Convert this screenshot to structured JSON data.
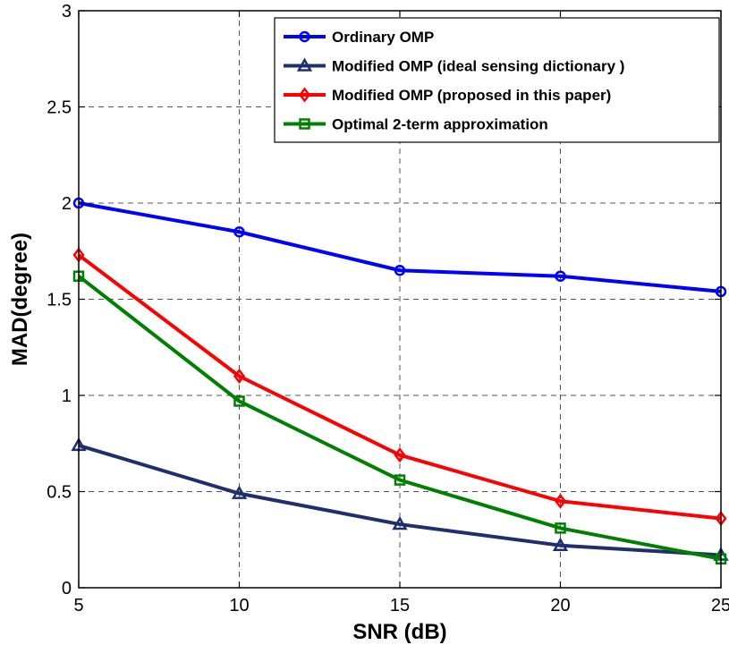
{
  "chart_data": {
    "type": "line",
    "xlabel": "SNR (dB)",
    "ylabel": "MAD(degree)",
    "xlim": [
      5,
      25
    ],
    "ylim": [
      0,
      3
    ],
    "x": [
      5,
      10,
      15,
      20,
      25
    ],
    "xticks": [
      "5",
      "10",
      "15",
      "20",
      "25"
    ],
    "yticks": [
      "0",
      "0.5",
      "1",
      "1.5",
      "2",
      "2.5",
      "3"
    ],
    "grid": true,
    "legend_position": "top-right",
    "series": [
      {
        "name": "Ordinary OMP",
        "color": "#0000ff",
        "marker": "circle",
        "values": [
          2.0,
          1.85,
          1.65,
          1.62,
          1.54
        ]
      },
      {
        "name": "Modified OMP (ideal sensing dictionary )",
        "color": "#1f2f6e",
        "marker": "triangle",
        "values": [
          0.74,
          0.49,
          0.33,
          0.22,
          0.17
        ]
      },
      {
        "name": "Modified OMP (proposed in this paper)",
        "color": "#ff0000",
        "marker": "diamond",
        "values": [
          1.73,
          1.1,
          0.69,
          0.45,
          0.36
        ]
      },
      {
        "name": "Optimal 2-term approximation",
        "color": "#008000",
        "marker": "square",
        "values": [
          1.62,
          0.97,
          0.56,
          0.31,
          0.15
        ]
      }
    ]
  }
}
